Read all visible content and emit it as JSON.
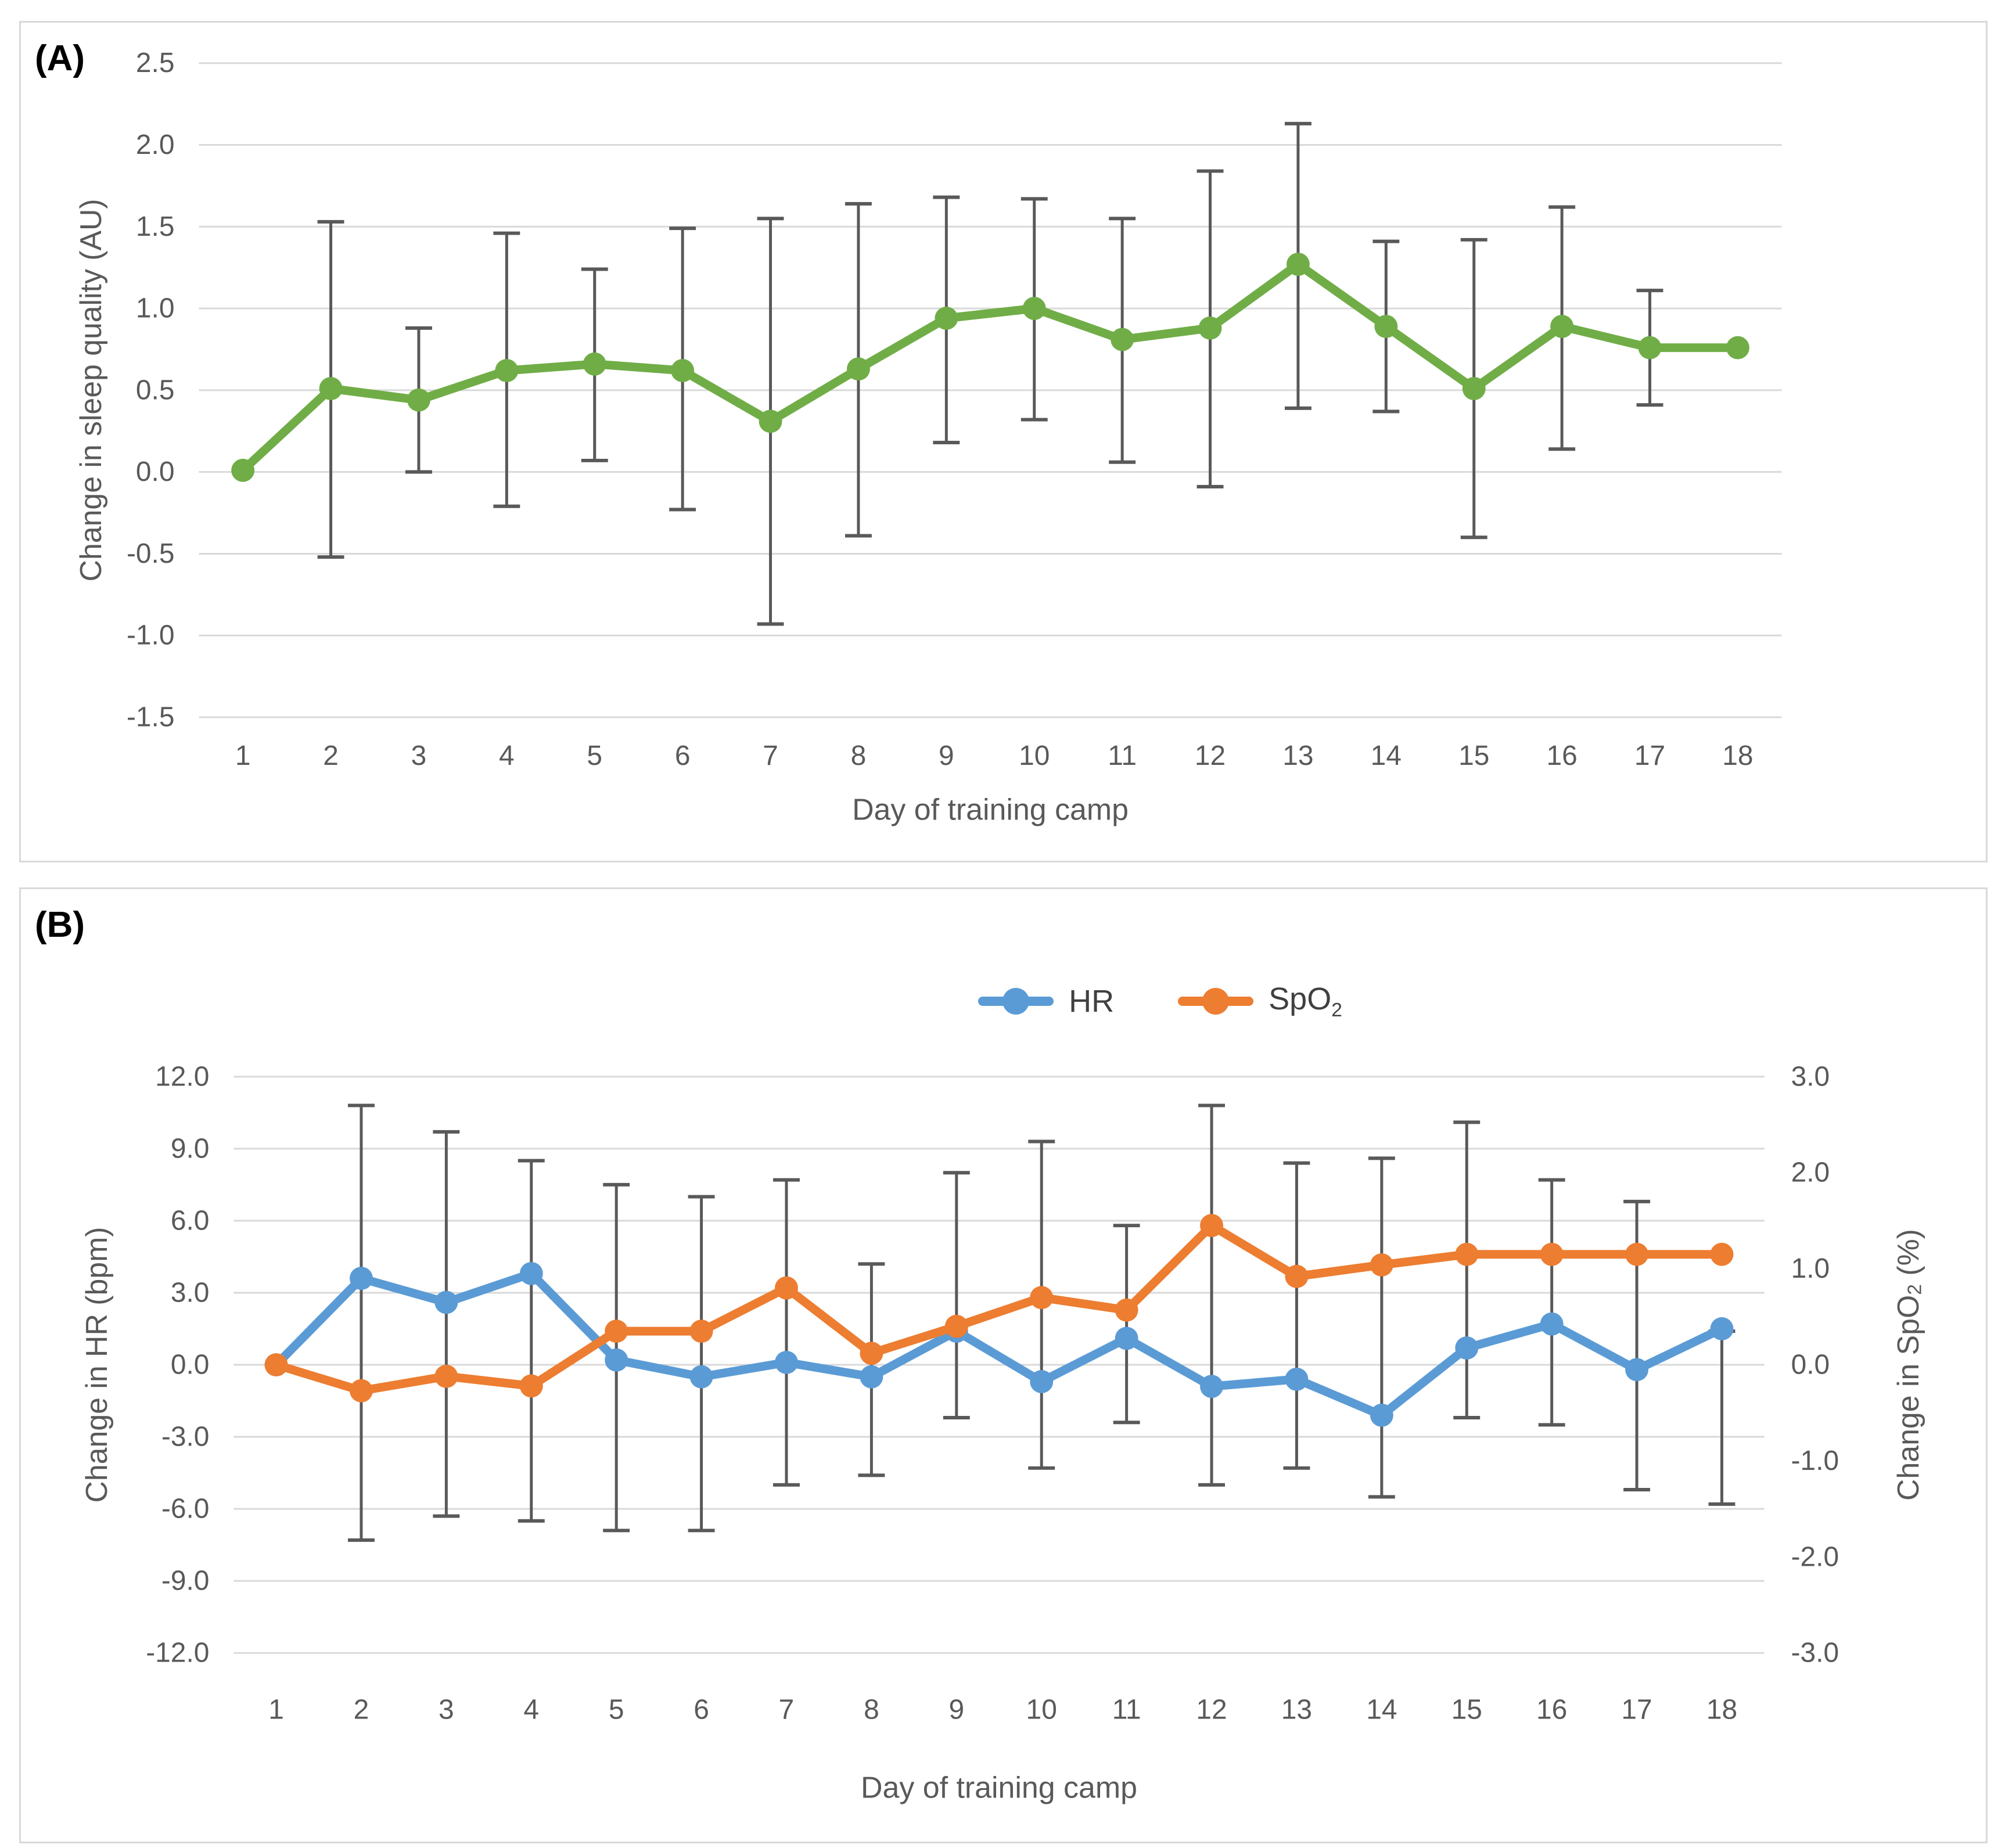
{
  "figure": {
    "background": "#ffffff",
    "panel_border_color": "#d9d9d9",
    "grid_color": "#d9d9d9",
    "error_bar_color": "#595959",
    "tick_text_color": "#595959",
    "axis_title_color": "#595959",
    "panel_label_color": "#000000"
  },
  "chart_data": [
    {
      "type": "line",
      "panel_label": "(A)",
      "xlabel": "Day of training camp",
      "ylabel_left": "Change in sleep quality (AU)",
      "categories": [
        "1",
        "2",
        "3",
        "4",
        "5",
        "6",
        "7",
        "8",
        "9",
        "10",
        "11",
        "12",
        "13",
        "14",
        "15",
        "16",
        "17",
        "18"
      ],
      "ylim_left": [
        -1.5,
        2.5
      ],
      "ytick_values_left": [
        2.5,
        2.0,
        1.5,
        1.0,
        0.5,
        0.0,
        -0.5,
        -1.0,
        -1.5
      ],
      "ytick_labels_left": [
        "2.5",
        "2.0",
        "1.5",
        "1.0",
        "0.5",
        "0.0",
        "-0.5",
        "-1.0",
        "-1.5"
      ],
      "grid": true,
      "legend": null,
      "series": [
        {
          "name": "Sleep quality",
          "color": "#70ad47",
          "axis": "left",
          "values": [
            0.01,
            0.51,
            0.44,
            0.62,
            0.66,
            0.62,
            0.31,
            0.63,
            0.94,
            1.0,
            0.81,
            0.88,
            1.27,
            0.89,
            0.51,
            0.89,
            0.76,
            0.76
          ]
        }
      ],
      "error_bars": {
        "axis": "left",
        "low": [
          null,
          -0.52,
          0.0,
          -0.21,
          0.07,
          -0.23,
          -0.93,
          -0.39,
          0.18,
          0.32,
          0.06,
          -0.09,
          0.39,
          0.37,
          -0.4,
          0.14,
          0.41,
          null
        ],
        "high": [
          null,
          1.53,
          0.88,
          1.46,
          1.24,
          1.49,
          1.55,
          1.64,
          1.68,
          1.67,
          1.55,
          1.84,
          2.13,
          1.41,
          1.42,
          1.62,
          1.11,
          null
        ]
      }
    },
    {
      "type": "line",
      "panel_label": "(B)",
      "xlabel": "Day of training camp",
      "ylabel_left": "Change in HR (bpm)",
      "ylabel_right": "Change in SpO₂ (%)",
      "categories": [
        "1",
        "2",
        "3",
        "4",
        "5",
        "6",
        "7",
        "8",
        "9",
        "10",
        "11",
        "12",
        "13",
        "14",
        "15",
        "16",
        "17",
        "18"
      ],
      "ylim_left": [
        -12.0,
        12.0
      ],
      "ylim_right": [
        -3.0,
        3.0
      ],
      "ytick_values_left": [
        12,
        9,
        6,
        3,
        0,
        -3,
        -6,
        -9,
        -12
      ],
      "ytick_labels_left": [
        "12.0",
        "9.0",
        "6.0",
        "3.0",
        "0.0",
        "-3.0",
        "-6.0",
        "-9.0",
        "-12.0"
      ],
      "ytick_values_right": [
        3,
        2,
        1,
        0,
        -1,
        -2,
        -3
      ],
      "ytick_labels_right": [
        "3.0",
        "2.0",
        "1.0",
        "0.0",
        "-1.0",
        "-2.0",
        "-3.0"
      ],
      "grid": true,
      "legend": [
        "HR",
        "SpO₂"
      ],
      "series": [
        {
          "name": "HR",
          "color": "#5b9bd5",
          "axis": "left",
          "values": [
            0.0,
            3.6,
            2.6,
            3.8,
            0.2,
            -0.5,
            0.1,
            -0.5,
            1.4,
            -0.7,
            1.1,
            -0.9,
            -0.6,
            -2.1,
            0.7,
            1.7,
            -0.2,
            1.5
          ]
        },
        {
          "name": "SpO₂",
          "color": "#ed7d31",
          "axis": "right",
          "values": [
            0.0,
            -0.27,
            -0.12,
            -0.22,
            0.35,
            0.35,
            0.8,
            0.12,
            0.4,
            0.7,
            0.57,
            1.45,
            0.92,
            1.04,
            1.15,
            1.15,
            1.15,
            1.15
          ]
        }
      ],
      "error_bars": {
        "axis": "left",
        "low": [
          null,
          -7.3,
          -6.3,
          -6.5,
          -6.9,
          -6.9,
          -5.0,
          -4.6,
          -2.2,
          -4.3,
          -2.4,
          -5.0,
          -4.3,
          -5.5,
          -2.2,
          -2.5,
          -5.2,
          -5.8
        ],
        "high": [
          null,
          10.8,
          9.7,
          8.5,
          7.5,
          7.0,
          7.7,
          4.2,
          8.0,
          9.3,
          5.8,
          10.8,
          8.4,
          8.6,
          10.1,
          7.7,
          6.8,
          1.4
        ]
      }
    }
  ]
}
